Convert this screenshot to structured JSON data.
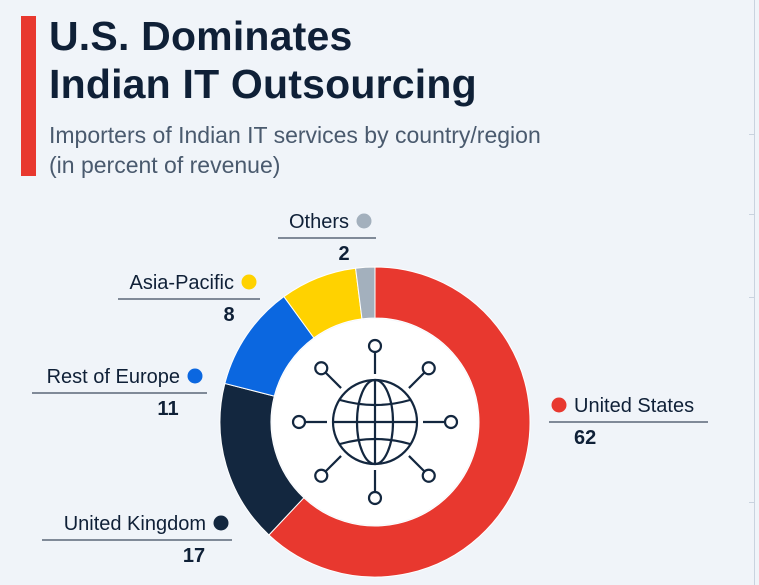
{
  "header": {
    "title": "U.S. Dominates\nIndian IT Outsourcing",
    "subtitle": "Importers of Indian IT services by country/region\n(in percent of revenue)"
  },
  "chart_data": {
    "type": "pie",
    "style": "donut",
    "title": "U.S. Dominates Indian IT Outsourcing",
    "subtitle": "Importers of Indian IT services by country/region (in percent of revenue)",
    "center_icon": "globe-network-icon",
    "slices": [
      {
        "label": "United States",
        "value": 62,
        "color": "#e8382f"
      },
      {
        "label": "United Kingdom",
        "value": 17,
        "color": "#13273f"
      },
      {
        "label": "Rest of Europe",
        "value": 11,
        "color": "#0b67e0"
      },
      {
        "label": "Asia-Pacific",
        "value": 8,
        "color": "#ffd200"
      },
      {
        "label": "Others",
        "value": 2,
        "color": "#a3b0bd"
      }
    ]
  }
}
